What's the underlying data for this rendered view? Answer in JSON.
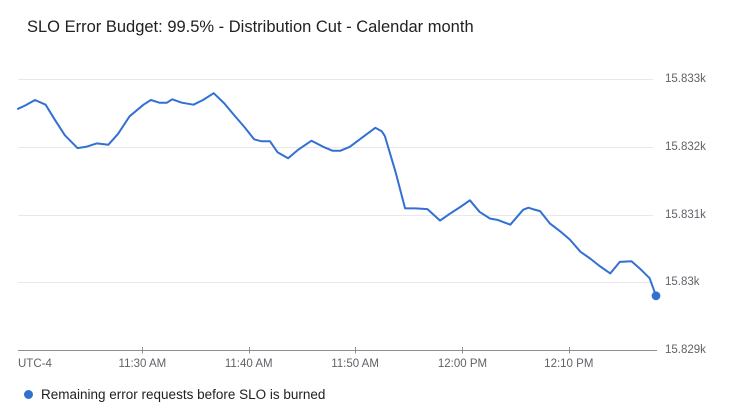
{
  "title": "SLO Error Budget: 99.5% - Distribution Cut - Calendar month",
  "legend": {
    "label": "Remaining error requests before SLO is burned"
  },
  "colors": {
    "line": "#3270d2",
    "endpoint_dot": "#3270d2",
    "legend_marker": "#3270d2",
    "gridline": "#e8e8e8",
    "axis_line": "#8f8f8f",
    "axis_label": "#5f6368",
    "title_text": "#202124",
    "background": "#ffffff"
  },
  "x_axis": {
    "timezone_label": "UTC-4",
    "minutes_span": 60,
    "ticks": [
      {
        "label": "11:30 AM",
        "t": 11.7
      },
      {
        "label": "11:40 AM",
        "t": 21.7
      },
      {
        "label": "11:50 AM",
        "t": 31.7
      },
      {
        "label": "12:00 PM",
        "t": 41.8
      },
      {
        "label": "12:10 PM",
        "t": 51.8
      }
    ]
  },
  "y_axis": {
    "ticks": [
      {
        "label": "15.833k",
        "value": 15833
      },
      {
        "label": "15.832k",
        "value": 15832
      },
      {
        "label": "15.831k",
        "value": 15831
      },
      {
        "label": "15.83k",
        "value": 15830
      },
      {
        "label": "15.829k",
        "value": 15829
      }
    ]
  },
  "chart_data": {
    "type": "line",
    "title": "SLO Error Budget: 99.5% - Distribution Cut - Calendar month",
    "xlabel": "time of day (UTC-4), ~1 hour window ending shortly after 12:10 PM",
    "ylabel": "Remaining error requests before SLO is burned",
    "x_unit": "minutes from start of visible window",
    "ylim": [
      15829,
      15833
    ],
    "grid": "horizontal",
    "legend_position": "bottom-left",
    "series": [
      {
        "name": "Remaining error requests before SLO is burned",
        "endpoint_marker": true,
        "points": [
          [
            0,
            15832.56
          ],
          [
            0.7,
            15832.61
          ],
          [
            1.6,
            15832.69
          ],
          [
            2.6,
            15832.62
          ],
          [
            3.5,
            15832.39
          ],
          [
            4.4,
            15832.17
          ],
          [
            5.6,
            15831.98
          ],
          [
            6.4,
            15832.0
          ],
          [
            7.4,
            15832.05
          ],
          [
            8.5,
            15832.03
          ],
          [
            9.4,
            15832.19
          ],
          [
            10.5,
            15832.45
          ],
          [
            11.8,
            15832.62
          ],
          [
            12.5,
            15832.69
          ],
          [
            13.3,
            15832.65
          ],
          [
            14.0,
            15832.65
          ],
          [
            14.5,
            15832.7
          ],
          [
            15.4,
            15832.65
          ],
          [
            16.5,
            15832.62
          ],
          [
            17.4,
            15832.69
          ],
          [
            18.4,
            15832.79
          ],
          [
            19.4,
            15832.64
          ],
          [
            20.3,
            15832.47
          ],
          [
            21.3,
            15832.29
          ],
          [
            22.2,
            15832.11
          ],
          [
            22.9,
            15832.08
          ],
          [
            23.7,
            15832.08
          ],
          [
            24.4,
            15831.92
          ],
          [
            25.4,
            15831.83
          ],
          [
            26.3,
            15831.95
          ],
          [
            27.6,
            15832.09
          ],
          [
            28.7,
            15832.0
          ],
          [
            29.6,
            15831.94
          ],
          [
            30.3,
            15831.94
          ],
          [
            31.2,
            15832.0
          ],
          [
            32.4,
            15832.14
          ],
          [
            33.6,
            15832.28
          ],
          [
            34.2,
            15832.23
          ],
          [
            34.5,
            15832.16
          ],
          [
            35.5,
            15831.63
          ],
          [
            36.4,
            15831.09
          ],
          [
            37.4,
            15831.09
          ],
          [
            38.5,
            15831.08
          ],
          [
            39.7,
            15830.91
          ],
          [
            40.6,
            15831.01
          ],
          [
            41.6,
            15831.11
          ],
          [
            42.5,
            15831.21
          ],
          [
            43.4,
            15831.04
          ],
          [
            44.4,
            15830.94
          ],
          [
            45.1,
            15830.92
          ],
          [
            46.3,
            15830.85
          ],
          [
            47.5,
            15831.07
          ],
          [
            48.0,
            15831.1
          ],
          [
            48.4,
            15831.08
          ],
          [
            49.1,
            15831.05
          ],
          [
            50.0,
            15830.87
          ],
          [
            51.0,
            15830.75
          ],
          [
            51.9,
            15830.63
          ],
          [
            52.9,
            15830.45
          ],
          [
            53.8,
            15830.35
          ],
          [
            54.7,
            15830.24
          ],
          [
            55.7,
            15830.13
          ],
          [
            56.6,
            15830.3
          ],
          [
            57.7,
            15830.31
          ],
          [
            58.5,
            15830.2
          ],
          [
            59.4,
            15830.06
          ],
          [
            60.0,
            15829.8
          ]
        ]
      }
    ]
  }
}
